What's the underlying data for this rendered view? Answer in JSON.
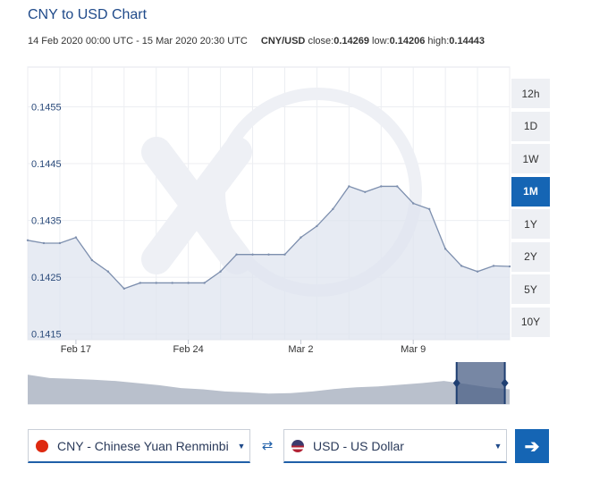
{
  "header": {
    "title": "CNY to USD Chart",
    "date_range": "14 Feb 2020 00:00 UTC - 15 Mar 2020 20:30 UTC",
    "pair": "CNY/USD",
    "close_label": "close:",
    "close_value": "0.14269",
    "low_label": "low:",
    "low_value": "0.14206",
    "high_label": "high:",
    "high_value": "0.14443"
  },
  "timeframes": [
    "12h",
    "1D",
    "1W",
    "1M",
    "1Y",
    "2Y",
    "5Y",
    "10Y"
  ],
  "active_timeframe": "1M",
  "converter": {
    "from_currency": "CNY - Chinese Yuan Renminbi",
    "to_currency": "USD - US Dollar",
    "swap_icon": "swap-arrows-icon",
    "go_icon": "arrow-right-icon"
  },
  "colors": {
    "accent": "#1565b4",
    "line": "#7d8fae",
    "fill": "#dfe4ef",
    "cny_flag": "#de2910",
    "usd_flag": "#3c3b6e"
  },
  "chart_data": {
    "type": "area",
    "x_tick_labels": [
      "Feb 17",
      "Feb 24",
      "Mar 2",
      "Mar 9"
    ],
    "y_tick_labels": [
      "0.1415",
      "0.1425",
      "0.1435",
      "0.1445",
      "0.1455"
    ],
    "ylim": [
      0.1414,
      0.1462
    ],
    "x_range": [
      "14 Feb 2020",
      "15 Mar 2020"
    ],
    "grid": true,
    "x": [
      "2020-02-14",
      "2020-02-15",
      "2020-02-16",
      "2020-02-17",
      "2020-02-18",
      "2020-02-19",
      "2020-02-20",
      "2020-02-21",
      "2020-02-22",
      "2020-02-23",
      "2020-02-24",
      "2020-02-25",
      "2020-02-26",
      "2020-02-27",
      "2020-02-28",
      "2020-02-29",
      "2020-03-01",
      "2020-03-02",
      "2020-03-03",
      "2020-03-04",
      "2020-03-05",
      "2020-03-06",
      "2020-03-07",
      "2020-03-08",
      "2020-03-09",
      "2020-03-10",
      "2020-03-11",
      "2020-03-12",
      "2020-03-13",
      "2020-03-14",
      "2020-03-15"
    ],
    "values": [
      0.14315,
      0.1431,
      0.1431,
      0.1432,
      0.1428,
      0.1426,
      0.1423,
      0.1424,
      0.1424,
      0.1424,
      0.1424,
      0.1424,
      0.1426,
      0.1429,
      0.1429,
      0.1429,
      0.1429,
      0.1432,
      0.1434,
      0.1437,
      0.1441,
      0.144,
      0.1441,
      0.1441,
      0.1438,
      0.1437,
      0.143,
      0.1427,
      0.1426,
      0.1427,
      0.14269
    ],
    "overview": {
      "values": [
        0.7,
        0.62,
        0.6,
        0.58,
        0.55,
        0.5,
        0.45,
        0.38,
        0.35,
        0.3,
        0.28,
        0.25,
        0.26,
        0.3,
        0.36,
        0.4,
        0.42,
        0.46,
        0.5,
        0.55,
        0.48,
        0.4,
        0.35
      ],
      "window": [
        0.89,
        0.99
      ]
    }
  }
}
